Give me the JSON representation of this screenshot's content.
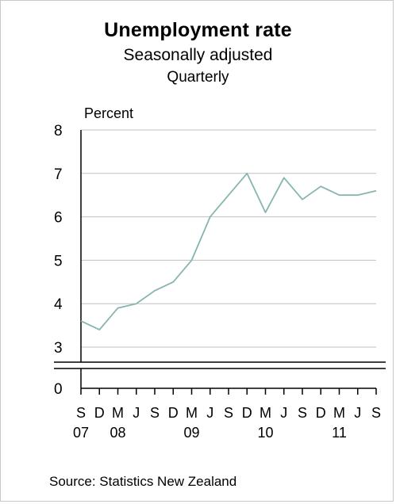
{
  "chart_data": {
    "type": "line",
    "title": "Unemployment rate",
    "subtitle": "Seasonally adjusted",
    "subtitle2": "Quarterly",
    "ylabel": "Percent",
    "source": "Source: Statistics New Zealand",
    "ylim": [
      0,
      8
    ],
    "y_axis_break": true,
    "yticks": [
      0,
      3,
      4,
      5,
      6,
      7,
      8
    ],
    "grid": "horizontal",
    "legend": "none",
    "line_color": "#86b5b1",
    "x": [
      "Sep 2007",
      "Dec 2007",
      "Mar 2008",
      "Jun 2008",
      "Sep 2008",
      "Dec 2008",
      "Mar 2009",
      "Jun 2009",
      "Sep 2009",
      "Dec 2009",
      "Mar 2010",
      "Jun 2010",
      "Sep 2010",
      "Dec 2010",
      "Mar 2011",
      "Jun 2011",
      "Sep 2011"
    ],
    "month_labels": [
      "S",
      "D",
      "M",
      "J",
      "S",
      "D",
      "M",
      "J",
      "S",
      "D",
      "M",
      "J",
      "S",
      "D",
      "M",
      "J",
      "S"
    ],
    "year_labels": [
      {
        "index": 0,
        "text": "07"
      },
      {
        "index": 2,
        "text": "08"
      },
      {
        "index": 6,
        "text": "09"
      },
      {
        "index": 10,
        "text": "10"
      },
      {
        "index": 14,
        "text": "11"
      }
    ],
    "series": [
      {
        "values": [
          3.6,
          3.4,
          3.9,
          4.0,
          4.3,
          4.5,
          5.0,
          6.0,
          6.5,
          7.0,
          6.1,
          6.9,
          6.4,
          6.7,
          6.5,
          6.5,
          6.6
        ]
      }
    ]
  }
}
